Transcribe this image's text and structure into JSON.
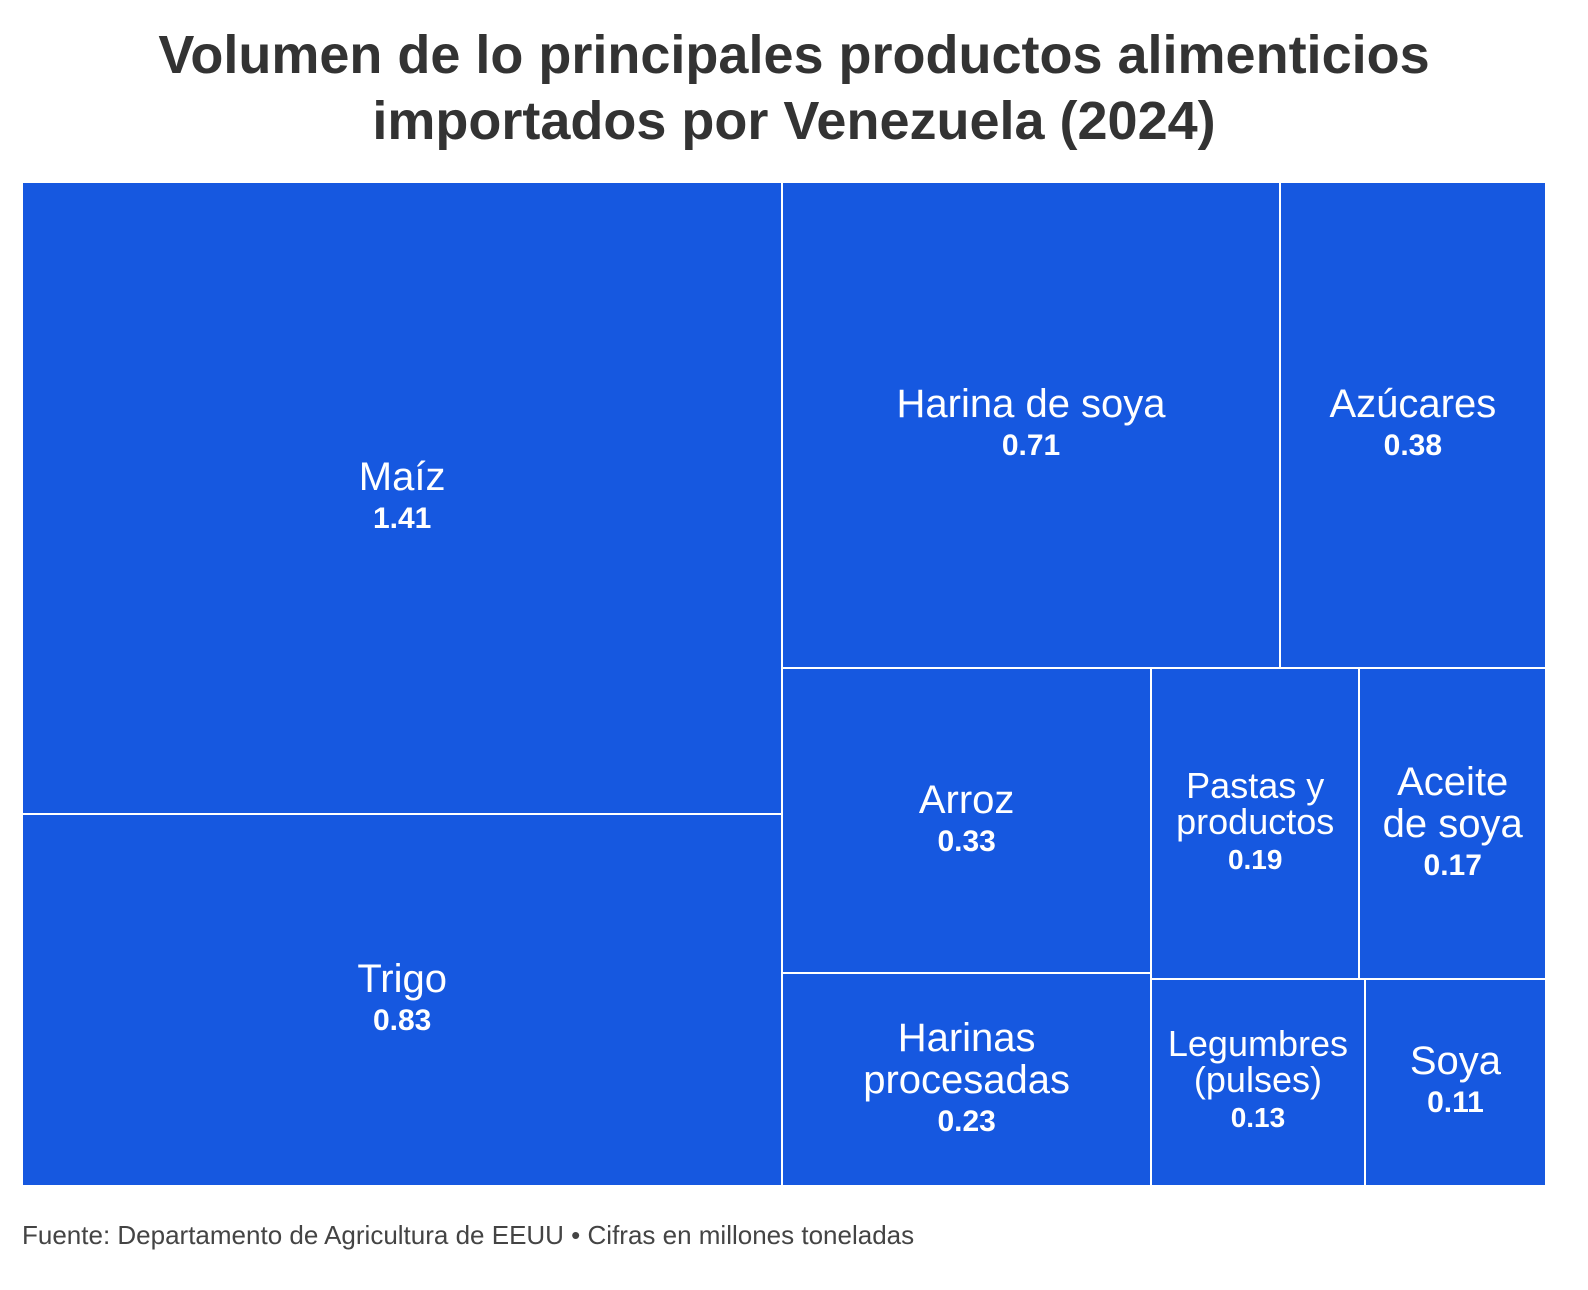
{
  "chart_data": {
    "type": "treemap",
    "title": [
      "Volumen de lo principales productos alimenticios",
      "importados por Venezuela (2024)"
    ],
    "source": "Fuente: Departamento de Agricultura de EEUU • Cifras en millones toneladas",
    "color": "#1658e0",
    "items": [
      {
        "label": "Maíz",
        "value": 1.41
      },
      {
        "label": "Trigo",
        "value": 0.83
      },
      {
        "label": "Harina de soya",
        "value": 0.71
      },
      {
        "label": "Azúcares",
        "value": 0.38
      },
      {
        "label": "Arroz",
        "value": 0.33
      },
      {
        "label": "Harinas\nprocesadas",
        "value": 0.23
      },
      {
        "label": "Pastas y\nproductos",
        "value": 0.19
      },
      {
        "label": "Aceite\nde soya",
        "value": 0.17
      },
      {
        "label": "Legumbres\n(pulses)",
        "value": 0.13
      },
      {
        "label": "Soya",
        "value": 0.11
      }
    ]
  }
}
